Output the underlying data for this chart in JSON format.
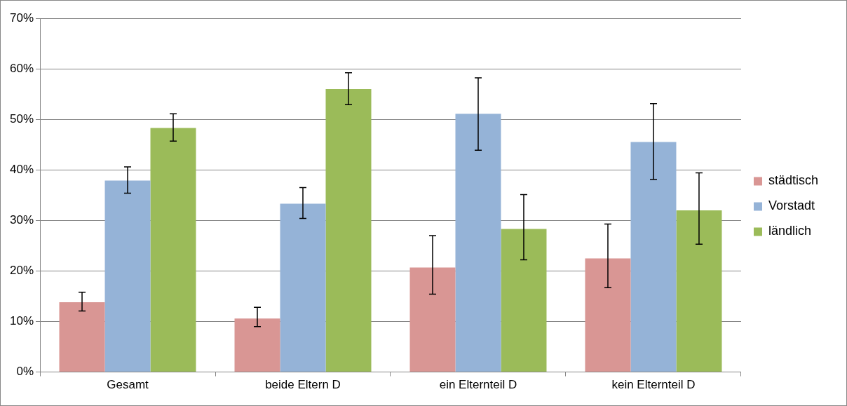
{
  "chart_data": {
    "type": "bar",
    "categories": [
      "Gesamt",
      "beide Eltern D",
      "ein Elternteil D",
      "kein Elternteil D"
    ],
    "series": [
      {
        "name": "städtisch",
        "color": "#d99694",
        "values": [
          13.8,
          10.6,
          20.7,
          22.5
        ],
        "errors": [
          [
            12.1,
            15.8
          ],
          [
            9.0,
            12.8
          ],
          [
            15.4,
            27.0
          ],
          [
            16.7,
            29.3
          ]
        ]
      },
      {
        "name": "Vorstadt",
        "color": "#95b3d7",
        "values": [
          37.9,
          33.3,
          51.1,
          45.5
        ],
        "errors": [
          [
            35.4,
            40.6
          ],
          [
            30.4,
            36.5
          ],
          [
            43.9,
            58.2
          ],
          [
            38.1,
            53.1
          ]
        ]
      },
      {
        "name": "ländlich",
        "color": "#9bbb59",
        "values": [
          48.3,
          56.0,
          28.3,
          32.0
        ],
        "errors": [
          [
            45.7,
            51.1
          ],
          [
            52.9,
            59.2
          ],
          [
            22.2,
            35.1
          ],
          [
            25.3,
            39.4
          ]
        ]
      }
    ],
    "ylim": [
      0,
      70
    ],
    "yticks": [
      {
        "value": 0,
        "label": "0%"
      },
      {
        "value": 10,
        "label": "10%"
      },
      {
        "value": 20,
        "label": "20%"
      },
      {
        "value": 30,
        "label": "30%"
      },
      {
        "value": 40,
        "label": "40%"
      },
      {
        "value": 50,
        "label": "50%"
      },
      {
        "value": 60,
        "label": "60%"
      },
      {
        "value": 70,
        "label": "70%"
      }
    ],
    "grid": "y",
    "legend": "right"
  }
}
